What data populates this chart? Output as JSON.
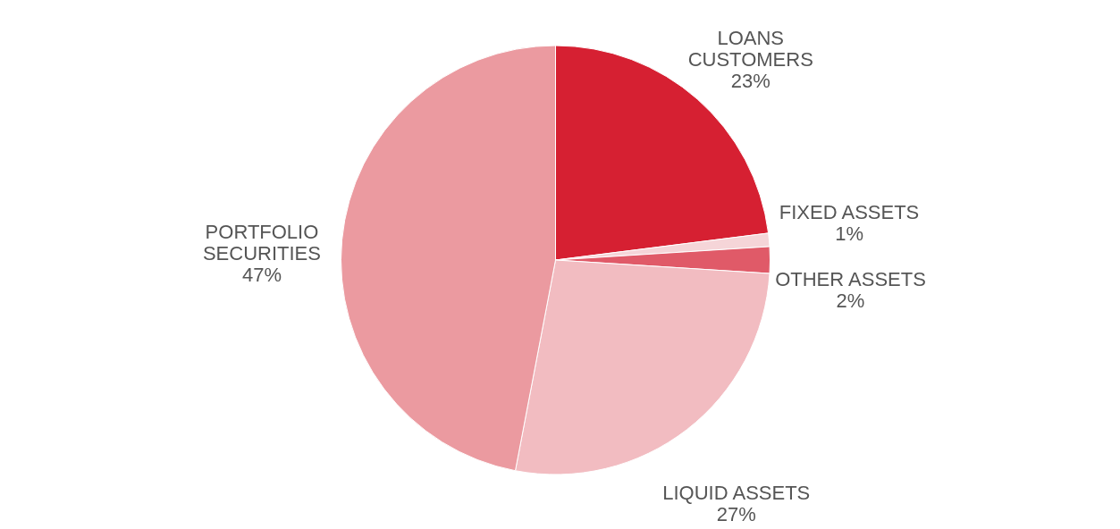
{
  "chart_data": {
    "type": "pie",
    "categories": [
      "LOANS\nCUSTOMERS",
      "FIXED ASSETS",
      "OTHER ASSETS",
      "LIQUID ASSETS",
      "PORTFOLIO\nSECURITIES"
    ],
    "values": [
      23,
      1,
      2,
      27,
      47
    ],
    "value_labels": [
      "23%",
      "1%",
      "2%",
      "27%",
      "47%"
    ],
    "colors": [
      "#d62032",
      "#f5d5d8",
      "#e05a68",
      "#f2bcc1",
      "#eb9aa0"
    ],
    "legend": false
  }
}
